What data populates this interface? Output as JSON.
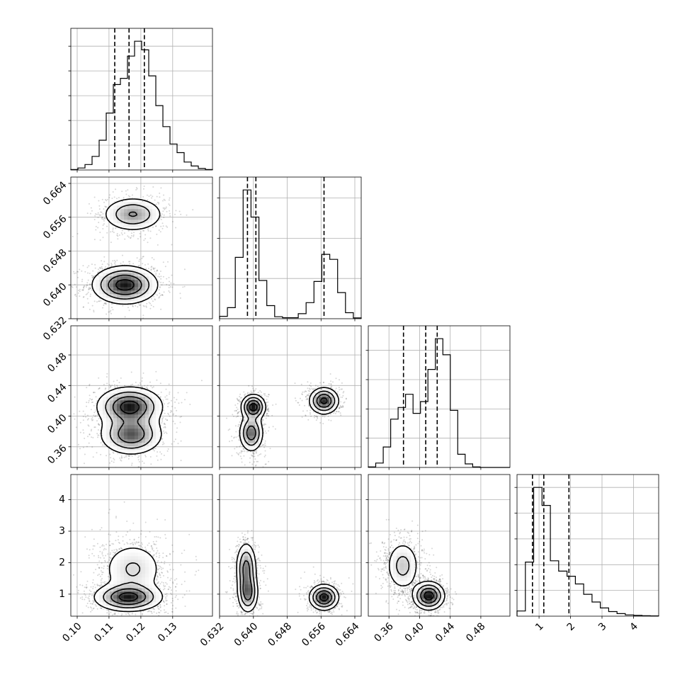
{
  "chart_data": {
    "type": "corner",
    "title": "",
    "parameters": [
      {
        "range": [
          0.098,
          0.1425
        ],
        "ticks": [
          "0.10",
          "0.11",
          "0.12",
          "0.13"
        ],
        "tick_values": [
          0.1,
          0.11,
          0.12,
          0.13
        ],
        "quantiles": [
          0.1118,
          0.1163,
          0.1211
        ],
        "xlabel": ""
      },
      {
        "range": [
          0.632,
          0.6655
        ],
        "ticks": [
          "0.632",
          "0.640",
          "0.648",
          "0.656",
          "0.664"
        ],
        "tick_values": [
          0.632,
          0.64,
          0.648,
          0.656,
          0.664
        ],
        "quantiles": [
          0.6386,
          0.6406,
          0.6567
        ],
        "xlabel": ""
      },
      {
        "range": [
          0.333,
          0.518
        ],
        "ticks": [
          "0.36",
          "0.40",
          "0.44",
          "0.48"
        ],
        "tick_values": [
          0.36,
          0.4,
          0.44,
          0.48
        ],
        "quantiles": [
          0.379,
          0.408,
          0.423
        ],
        "xlabel": ""
      },
      {
        "range": [
          0.3,
          4.8
        ],
        "ticks": [
          "1",
          "2",
          "3",
          "4"
        ],
        "tick_values": [
          1,
          2,
          3,
          4
        ],
        "quantiles": [
          0.79,
          1.15,
          1.95
        ],
        "xlabel": ""
      }
    ],
    "diagonal_histograms": [
      {
        "counts": [
          2,
          8,
          22,
          55,
          120,
          230,
          345,
          370,
          460,
          520,
          485,
          380,
          260,
          175,
          105,
          70,
          32,
          16,
          6,
          2
        ]
      },
      {
        "counts": [
          12,
          55,
          305,
          640,
          505,
          190,
          65,
          10,
          5,
          5,
          25,
          80,
          185,
          320,
          295,
          130,
          30,
          4
        ]
      },
      {
        "counts": [
          2,
          15,
          70,
          165,
          205,
          250,
          185,
          225,
          335,
          440,
          385,
          195,
          45,
          12,
          2,
          0,
          0,
          0,
          0
        ]
      },
      {
        "counts": [
          20,
          210,
          500,
          430,
          215,
          175,
          155,
          125,
          85,
          55,
          32,
          18,
          10,
          5,
          3,
          2,
          1
        ]
      }
    ],
    "pairs": [
      {
        "x_param": 0,
        "y_param": 1,
        "modes": [
          {
            "x": 0.115,
            "y": 0.64,
            "sx": 0.005,
            "sy": 0.0022,
            "w": 0.66
          },
          {
            "x": 0.1175,
            "y": 0.6567,
            "sx": 0.0047,
            "sy": 0.002,
            "w": 0.34
          }
        ]
      },
      {
        "x_param": 0,
        "y_param": 2,
        "modes": [
          {
            "x": 0.1165,
            "y": 0.4125,
            "sx": 0.005,
            "sy": 0.0125,
            "w": 0.55
          },
          {
            "x": 0.117,
            "y": 0.376,
            "sx": 0.0048,
            "sy": 0.013,
            "w": 0.45
          }
        ]
      },
      {
        "x_param": 1,
        "y_param": 2,
        "modes": [
          {
            "x": 0.64,
            "y": 0.412,
            "sx": 0.0014,
            "sy": 0.008,
            "w": 0.3
          },
          {
            "x": 0.6395,
            "y": 0.378,
            "sx": 0.0014,
            "sy": 0.012,
            "w": 0.34
          },
          {
            "x": 0.6567,
            "y": 0.42,
            "sx": 0.0017,
            "sy": 0.0085,
            "w": 0.36
          }
        ]
      },
      {
        "x_param": 0,
        "y_param": 3,
        "modes": [
          {
            "x": 0.116,
            "y": 0.9,
            "sx": 0.0052,
            "sy": 0.22,
            "w": 0.58
          },
          {
            "x": 0.1175,
            "y": 1.8,
            "sx": 0.005,
            "sy": 0.45,
            "w": 0.42
          }
        ]
      },
      {
        "x_param": 1,
        "y_param": 3,
        "modes": [
          {
            "x": 0.6387,
            "y": 1.05,
            "sx": 0.0012,
            "sy": 0.32,
            "w": 0.3
          },
          {
            "x": 0.6383,
            "y": 1.85,
            "sx": 0.0012,
            "sy": 0.4,
            "w": 0.34
          },
          {
            "x": 0.6567,
            "y": 0.9,
            "sx": 0.0017,
            "sy": 0.2,
            "w": 0.36
          }
        ]
      },
      {
        "x_param": 2,
        "y_param": 3,
        "modes": [
          {
            "x": 0.412,
            "y": 0.95,
            "sx": 0.01,
            "sy": 0.22,
            "w": 0.55
          },
          {
            "x": 0.378,
            "y": 1.9,
            "sx": 0.011,
            "sy": 0.4,
            "w": 0.45
          }
        ]
      }
    ],
    "contour_levels": 4,
    "grid": true,
    "colors": {
      "line": "#000000",
      "grid": "#b0b0b0",
      "density": "#000000",
      "background": "#ffffff"
    }
  }
}
